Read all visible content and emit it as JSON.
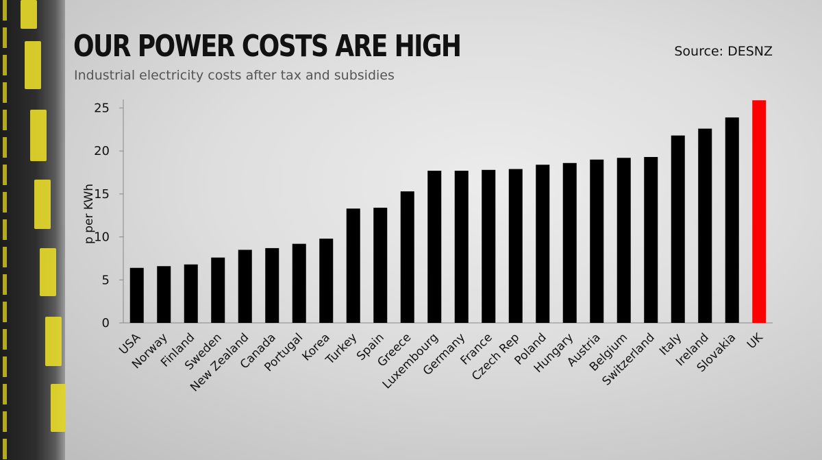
{
  "header": {
    "title": "OUR POWER COSTS ARE HIGH",
    "subtitle": "Industrial electricity costs after tax and subsidies",
    "source": "Source: DESNZ"
  },
  "colors": {
    "bar_default": "#000000",
    "bar_highlight": "#ff0000",
    "road_stripe": "#e5d82a"
  },
  "chart_data": {
    "type": "bar",
    "title": "OUR POWER COSTS ARE HIGH",
    "subtitle": "Industrial electricity costs after tax and subsidies",
    "xlabel": "",
    "ylabel": "p per KWh",
    "ylim": [
      0,
      26
    ],
    "yticks": [
      0,
      5,
      10,
      15,
      20,
      25
    ],
    "grid": false,
    "highlight": "UK",
    "categories": [
      "USA",
      "Norway",
      "Finland",
      "Sweden",
      "New Zealand",
      "Canada",
      "Portugal",
      "Korea",
      "Turkey",
      "Spain",
      "Greece",
      "Luxembourg",
      "Germany",
      "France",
      "Czech Rep",
      "Poland",
      "Hungary",
      "Austria",
      "Belgium",
      "Switzerland",
      "Italy",
      "Ireland",
      "Slovakia",
      "UK"
    ],
    "values": [
      6.4,
      6.6,
      6.8,
      7.6,
      8.5,
      8.7,
      9.2,
      9.8,
      13.3,
      13.4,
      15.3,
      17.7,
      17.7,
      17.8,
      17.9,
      18.4,
      18.6,
      19.0,
      19.2,
      19.3,
      21.8,
      22.6,
      23.9,
      25.9
    ]
  }
}
